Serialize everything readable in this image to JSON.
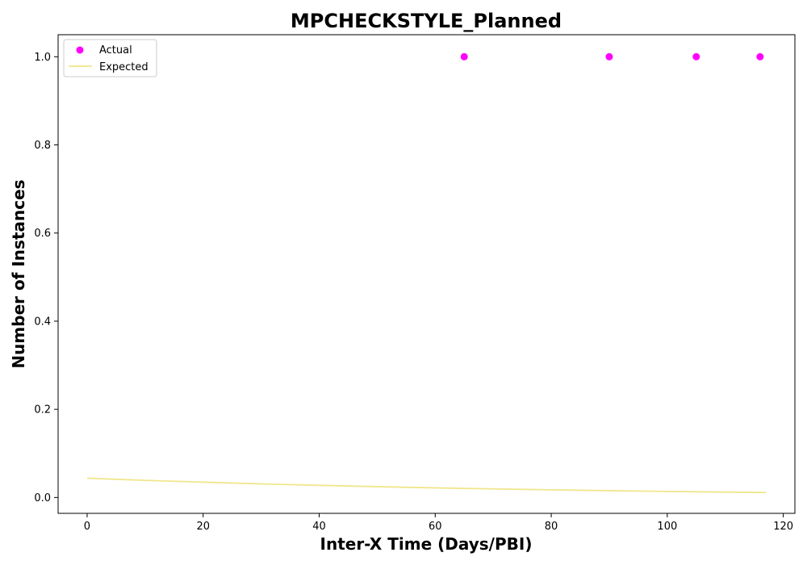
{
  "chart_data": {
    "type": "scatter",
    "title": "MPCHECKSTYLE_Planned",
    "xlabel": "Inter-X Time (Days/PBI)",
    "ylabel": "Number of Instances",
    "xlim": [
      -5,
      122
    ],
    "ylim": [
      -0.036,
      1.05
    ],
    "x_ticks": [
      0,
      20,
      40,
      60,
      80,
      100,
      120
    ],
    "y_ticks": [
      0.0,
      0.2,
      0.4,
      0.6,
      0.8,
      1.0
    ],
    "x_tick_labels": [
      "0",
      "20",
      "40",
      "60",
      "80",
      "100",
      "120"
    ],
    "y_tick_labels": [
      "0.0",
      "0.2",
      "0.4",
      "0.6",
      "0.8",
      "1.0"
    ],
    "grid": false,
    "legend_position": "top-left",
    "series": [
      {
        "name": "Actual",
        "kind": "scatter",
        "color": "#ff00ff",
        "x": [
          65,
          90,
          105,
          116
        ],
        "y": [
          1.0,
          1.0,
          1.0,
          1.0
        ]
      },
      {
        "name": "Expected",
        "kind": "line",
        "color": "#f0e68c",
        "x": [
          0,
          10,
          20,
          30,
          40,
          50,
          60,
          70,
          80,
          90,
          100,
          110,
          117
        ],
        "y": [
          0.0437,
          0.0389,
          0.0347,
          0.0309,
          0.0275,
          0.0245,
          0.0218,
          0.0194,
          0.0173,
          0.0154,
          0.0137,
          0.0122,
          0.0113
        ]
      }
    ]
  }
}
